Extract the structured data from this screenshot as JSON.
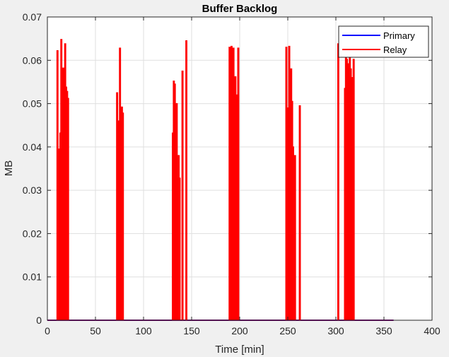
{
  "chart_data": {
    "type": "line",
    "title": "Buffer Backlog",
    "xlabel": "Time [min]",
    "ylabel": "MB",
    "xlim": [
      0,
      400
    ],
    "ylim": [
      0,
      0.07
    ],
    "xticks": [
      0,
      50,
      100,
      150,
      200,
      250,
      300,
      350,
      400
    ],
    "yticks": [
      0,
      0.01,
      0.02,
      0.03,
      0.04,
      0.05,
      0.06,
      0.07
    ],
    "grid": true,
    "legend_location": "top-right",
    "series": [
      {
        "name": "Primary",
        "color": "#0000ff",
        "x": [
          0,
          360
        ],
        "y": [
          0,
          0
        ]
      },
      {
        "name": "Relay",
        "color": "#ff0000",
        "x_end": 360,
        "spikes": [
          [
            10,
            0.0622
          ],
          [
            11,
            0.0395
          ],
          [
            12,
            0.0355
          ],
          [
            13,
            0.0432
          ],
          [
            14,
            0.0648
          ],
          [
            15,
            0.0582
          ],
          [
            16,
            0.0582
          ],
          [
            17,
            0.0472
          ],
          [
            18,
            0.0638
          ],
          [
            19,
            0.0538
          ],
          [
            20,
            0.0528
          ],
          [
            21,
            0.0512
          ],
          [
            72,
            0.0525
          ],
          [
            73,
            0.046
          ],
          [
            74,
            0.0455
          ],
          [
            75,
            0.0628
          ],
          [
            76,
            0.038
          ],
          [
            77,
            0.0492
          ],
          [
            78,
            0.0478
          ],
          [
            130,
            0.0432
          ],
          [
            131,
            0.0552
          ],
          [
            132,
            0.0545
          ],
          [
            133,
            0.044
          ],
          [
            134,
            0.05
          ],
          [
            135,
            0.037
          ],
          [
            136,
            0.038
          ],
          [
            137,
            0.0328
          ],
          [
            140,
            0.0575
          ],
          [
            144,
            0.0645
          ],
          [
            189,
            0.063
          ],
          [
            191,
            0.0632
          ],
          [
            192,
            0.0618
          ],
          [
            193,
            0.0628
          ],
          [
            194,
            0.0555
          ],
          [
            195,
            0.0562
          ],
          [
            196,
            0.052
          ],
          [
            198,
            0.0628
          ],
          [
            248,
            0.063
          ],
          [
            249,
            0.0415
          ],
          [
            250,
            0.049
          ],
          [
            251,
            0.0632
          ],
          [
            252,
            0.042
          ],
          [
            253,
            0.058
          ],
          [
            254,
            0.0505
          ],
          [
            255,
            0.04
          ],
          [
            257,
            0.038
          ],
          [
            262,
            0.0495
          ],
          [
            302,
            0.0638
          ],
          [
            309,
            0.0535
          ],
          [
            310,
            0.0615
          ],
          [
            311,
            0.0602
          ],
          [
            312,
            0.0592
          ],
          [
            313,
            0.0555
          ],
          [
            314,
            0.063
          ],
          [
            315,
            0.058
          ],
          [
            316,
            0.056
          ],
          [
            318,
            0.0602
          ]
        ]
      }
    ]
  }
}
